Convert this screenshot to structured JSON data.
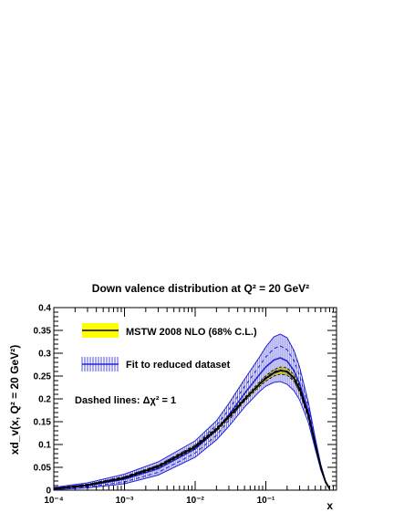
{
  "chart_data": {
    "type": "line",
    "title": "Down valence distribution at Q² = 20 GeV²",
    "xlabel": "x",
    "ylabel": "xd_v(x, Q² = 20 GeV²)",
    "x_scale": "log",
    "xlim": [
      0.0001,
      1
    ],
    "ylim": [
      0,
      0.4
    ],
    "x_tick_labels": [
      "10⁻⁴",
      "10⁻³",
      "10⁻²",
      "10⁻¹"
    ],
    "y_tick_labels": [
      "0",
      "0.05",
      "0.1",
      "0.15",
      "0.2",
      "0.25",
      "0.3",
      "0.35",
      "0.4"
    ],
    "legend": {
      "placement": "top-left",
      "entries": [
        "MSTW 2008 NLO (68% C.L.)",
        "Fit to reduced dataset"
      ]
    },
    "annotation": "Dashed lines: Δχ² = 1",
    "x": [
      0.0001,
      0.0003,
      0.001,
      0.003,
      0.01,
      0.02,
      0.03,
      0.05,
      0.08,
      0.1,
      0.13,
      0.16,
      0.2,
      0.25,
      0.3,
      0.4,
      0.5,
      0.6,
      0.7,
      0.8
    ],
    "series": [
      {
        "name": "MSTW 2008 NLO (68% C.L.)",
        "central": [
          0.003,
          0.011,
          0.027,
          0.052,
          0.095,
          0.133,
          0.161,
          0.199,
          0.231,
          0.245,
          0.257,
          0.262,
          0.26,
          0.246,
          0.222,
          0.165,
          0.1,
          0.05,
          0.018,
          0.003
        ],
        "upper": [
          0.004,
          0.013,
          0.029,
          0.055,
          0.098,
          0.137,
          0.165,
          0.203,
          0.236,
          0.251,
          0.264,
          0.27,
          0.268,
          0.253,
          0.229,
          0.17,
          0.104,
          0.052,
          0.019,
          0.003
        ],
        "lower": [
          0.002,
          0.009,
          0.025,
          0.049,
          0.092,
          0.129,
          0.157,
          0.195,
          0.226,
          0.239,
          0.25,
          0.254,
          0.252,
          0.239,
          0.215,
          0.16,
          0.096,
          0.048,
          0.017,
          0.003
        ],
        "color": "#000000",
        "band_color": "#ffff00"
      },
      {
        "name": "Fit to reduced dataset",
        "central": [
          0.003,
          0.01,
          0.024,
          0.047,
          0.09,
          0.131,
          0.165,
          0.212,
          0.252,
          0.27,
          0.285,
          0.29,
          0.283,
          0.262,
          0.234,
          0.17,
          0.102,
          0.05,
          0.018,
          0.003
        ],
        "upper": [
          0.006,
          0.016,
          0.035,
          0.062,
          0.108,
          0.152,
          0.19,
          0.243,
          0.29,
          0.314,
          0.336,
          0.342,
          0.334,
          0.306,
          0.27,
          0.192,
          0.114,
          0.056,
          0.02,
          0.004
        ],
        "lower": [
          0.001,
          0.005,
          0.014,
          0.033,
          0.072,
          0.11,
          0.14,
          0.182,
          0.215,
          0.228,
          0.236,
          0.238,
          0.232,
          0.218,
          0.198,
          0.148,
          0.09,
          0.044,
          0.016,
          0.002
        ],
        "upper_dashed": [
          0.005,
          0.013,
          0.03,
          0.055,
          0.099,
          0.142,
          0.177,
          0.227,
          0.271,
          0.292,
          0.31,
          0.316,
          0.308,
          0.284,
          0.252,
          0.181,
          0.108,
          0.053,
          0.019,
          0.003
        ],
        "lower_dashed": [
          0.002,
          0.007,
          0.018,
          0.039,
          0.081,
          0.12,
          0.153,
          0.197,
          0.233,
          0.248,
          0.26,
          0.264,
          0.258,
          0.24,
          0.216,
          0.159,
          0.096,
          0.047,
          0.017,
          0.002
        ],
        "color": "#2424d8"
      }
    ]
  }
}
